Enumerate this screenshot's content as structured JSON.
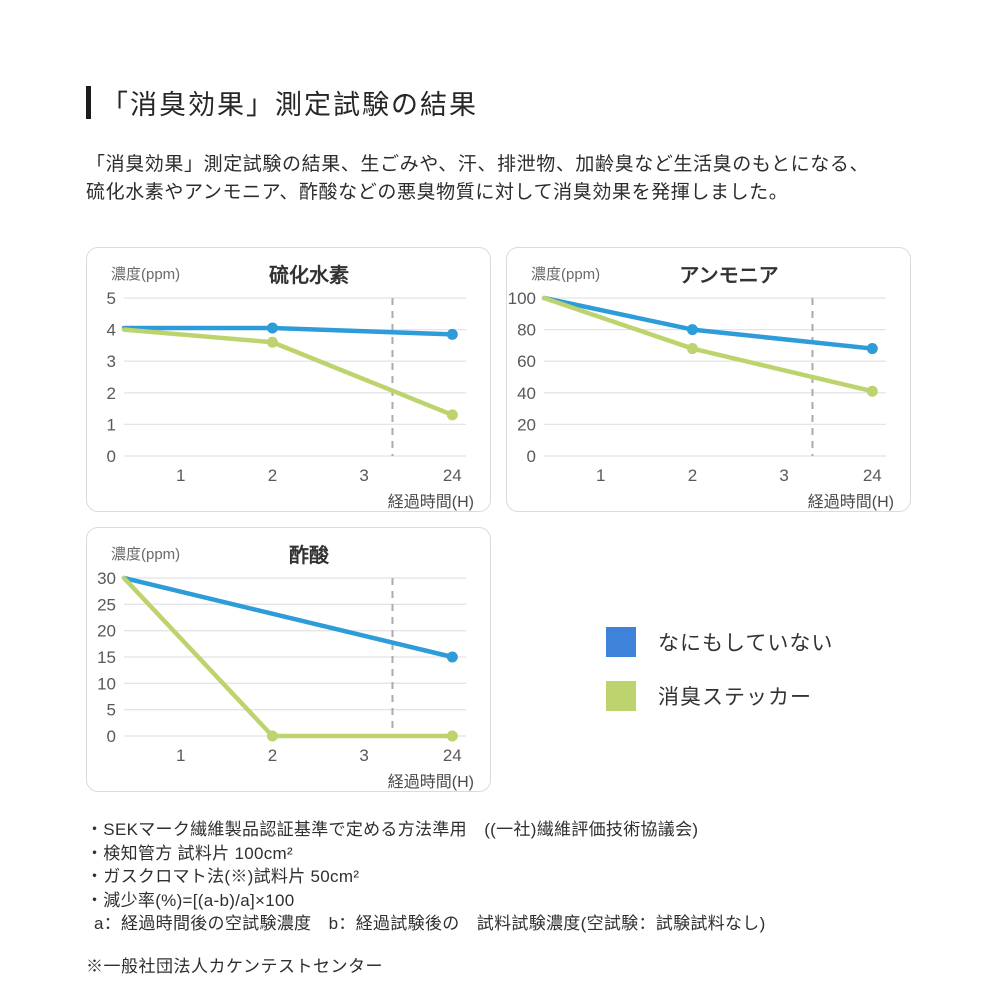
{
  "page": {
    "title": "「消臭効果」測定試験の結果",
    "intro_line1": "「消臭効果」測定試験の結果、生ごみや、汗、排泄物、加齢臭など生活臭のもとになる、",
    "intro_line2": "硫化水素やアンモニア、酢酸などの悪臭物質に対して消臭効果を発揮しました。"
  },
  "colors": {
    "blue": "#2E9CD9",
    "green": "#BDD36E",
    "legend_blue": "#3E82D9",
    "legend_green": "#BDD36E",
    "grid": "#E4E4E4",
    "dashed": "#ABABAB"
  },
  "chart_data": [
    {
      "type": "line",
      "title": "硫化水素",
      "ylabel": "濃度(ppm)",
      "xlabel": "経過時間(H)",
      "ylim": [
        0,
        5
      ],
      "y_ticks": [
        0,
        1,
        2,
        3,
        4,
        5
      ],
      "x_ticks": [
        "1",
        "2",
        "3",
        "24"
      ],
      "axis_break_between": [
        "3",
        "24"
      ],
      "grid": true,
      "series": [
        {
          "name": "なにもしていない",
          "color_key": "blue",
          "points": [
            {
              "x": 0,
              "y": 4.05
            },
            {
              "x": 2,
              "y": 4.05
            },
            {
              "x": 24,
              "y": 3.85
            }
          ]
        },
        {
          "name": "消臭ステッカー",
          "color_key": "green",
          "points": [
            {
              "x": 0,
              "y": 4.0
            },
            {
              "x": 2,
              "y": 3.6
            },
            {
              "x": 24,
              "y": 1.3
            }
          ]
        }
      ]
    },
    {
      "type": "line",
      "title": "アンモニア",
      "ylabel": "濃度(ppm)",
      "xlabel": "経過時間(H)",
      "ylim": [
        0,
        100
      ],
      "y_ticks": [
        0,
        20,
        40,
        60,
        80,
        100
      ],
      "x_ticks": [
        "1",
        "2",
        "3",
        "24"
      ],
      "axis_break_between": [
        "3",
        "24"
      ],
      "grid": true,
      "series": [
        {
          "name": "なにもしていない",
          "color_key": "blue",
          "points": [
            {
              "x": 0,
              "y": 100
            },
            {
              "x": 2,
              "y": 80
            },
            {
              "x": 24,
              "y": 68
            }
          ]
        },
        {
          "name": "消臭ステッカー",
          "color_key": "green",
          "points": [
            {
              "x": 0,
              "y": 100
            },
            {
              "x": 2,
              "y": 68
            },
            {
              "x": 24,
              "y": 41
            }
          ]
        }
      ]
    },
    {
      "type": "line",
      "title": "酢酸",
      "ylabel": "濃度(ppm)",
      "xlabel": "経過時間(H)",
      "ylim": [
        0,
        30
      ],
      "y_ticks": [
        0,
        5,
        10,
        15,
        20,
        25,
        30
      ],
      "x_ticks": [
        "1",
        "2",
        "3",
        "24"
      ],
      "axis_break_between": [
        "3",
        "24"
      ],
      "grid": true,
      "series": [
        {
          "name": "なにもしていない",
          "color_key": "blue",
          "points": [
            {
              "x": 0,
              "y": 30
            },
            {
              "x": 24,
              "y": 15
            }
          ]
        },
        {
          "name": "消臭ステッカー",
          "color_key": "green",
          "points": [
            {
              "x": 0,
              "y": 30
            },
            {
              "x": 2,
              "y": 0
            },
            {
              "x": 24,
              "y": 0
            }
          ]
        }
      ]
    }
  ],
  "legend": {
    "items": [
      {
        "label": "なにもしていない",
        "color": "#3E82D9"
      },
      {
        "label": "消臭ステッカー",
        "color": "#BDD36E"
      }
    ]
  },
  "footnotes": {
    "lines": [
      "・SEKマーク繊維製品認証基準で定める方法準用　((一社)繊維評価技術協議会)",
      "・検知管方 試料片 100cm²",
      "・ガスクロマト法(※)試料片 50cm²",
      "・減少率(%)=[(a-b)/a]×100",
      "a：経過時間後の空試験濃度　b：経過試験後の　試料試験濃度(空試験：試験試料なし)"
    ],
    "source": "※一般社団法人カケンテストセンター"
  }
}
